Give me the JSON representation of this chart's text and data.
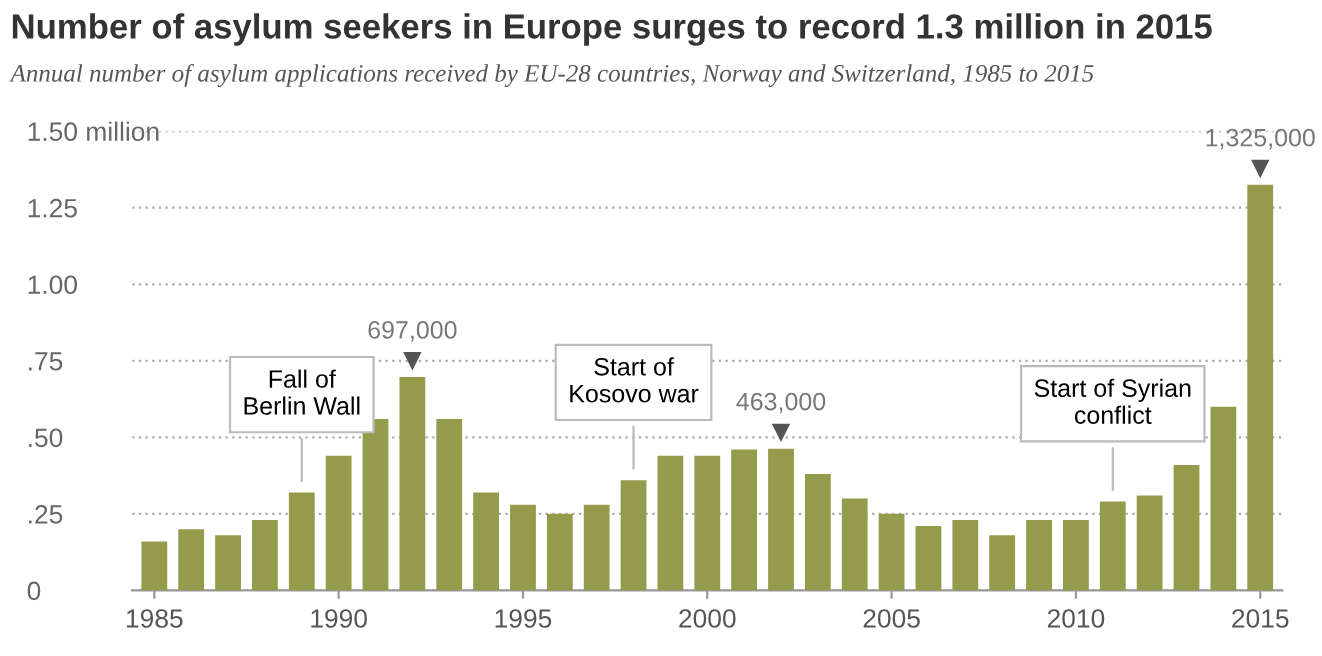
{
  "chart_data": {
    "type": "bar",
    "title": "Number of asylum seekers in Europe surges to record 1.3 million in 2015",
    "subtitle": "Annual number of asylum applications received by EU-28 countries, Norway and Switzerland, 1985 to 2015",
    "x": [
      1985,
      1986,
      1987,
      1988,
      1989,
      1990,
      1991,
      1992,
      1993,
      1994,
      1995,
      1996,
      1997,
      1998,
      1999,
      2000,
      2001,
      2002,
      2003,
      2004,
      2005,
      2006,
      2007,
      2008,
      2009,
      2010,
      2011,
      2012,
      2013,
      2014,
      2015
    ],
    "values": [
      0.16,
      0.2,
      0.18,
      0.23,
      0.32,
      0.44,
      0.56,
      0.697,
      0.56,
      0.32,
      0.28,
      0.25,
      0.28,
      0.36,
      0.44,
      0.44,
      0.46,
      0.463,
      0.38,
      0.3,
      0.25,
      0.21,
      0.23,
      0.18,
      0.23,
      0.23,
      0.29,
      0.31,
      0.41,
      0.6,
      1.325
    ],
    "color": "#949b4b",
    "xlim": [
      1984.4,
      2015.6
    ],
    "xticks": [
      1985,
      1990,
      1995,
      2000,
      2005,
      2010,
      2015
    ],
    "ylim": [
      0,
      1.5
    ],
    "yticks": [
      {
        "value": 0,
        "label": "0"
      },
      {
        "value": 0.25,
        "label": ".25"
      },
      {
        "value": 0.5,
        "label": ".50"
      },
      {
        "value": 0.75,
        "label": ".75"
      },
      {
        "value": 1.0,
        "label": "1.00"
      },
      {
        "value": 1.25,
        "label": "1.25"
      },
      {
        "value": 1.5,
        "label": "1.50 million"
      }
    ],
    "grid": "y",
    "annotations": [
      {
        "text": "697,000",
        "x": 1992,
        "y": 0.697
      },
      {
        "text": "463,000",
        "x": 2002,
        "y": 0.463
      },
      {
        "text": "1,325,000",
        "x": 2015,
        "y": 1.325
      },
      {
        "text": "Fall of\nBerlin Wall",
        "x": 1989,
        "y": 0.32
      },
      {
        "text": "Start of\nKosovo war",
        "x": 1998,
        "y": 0.36
      },
      {
        "text": "Start of Syrian\nconflict",
        "x": 2011,
        "y": 0.29
      }
    ]
  }
}
